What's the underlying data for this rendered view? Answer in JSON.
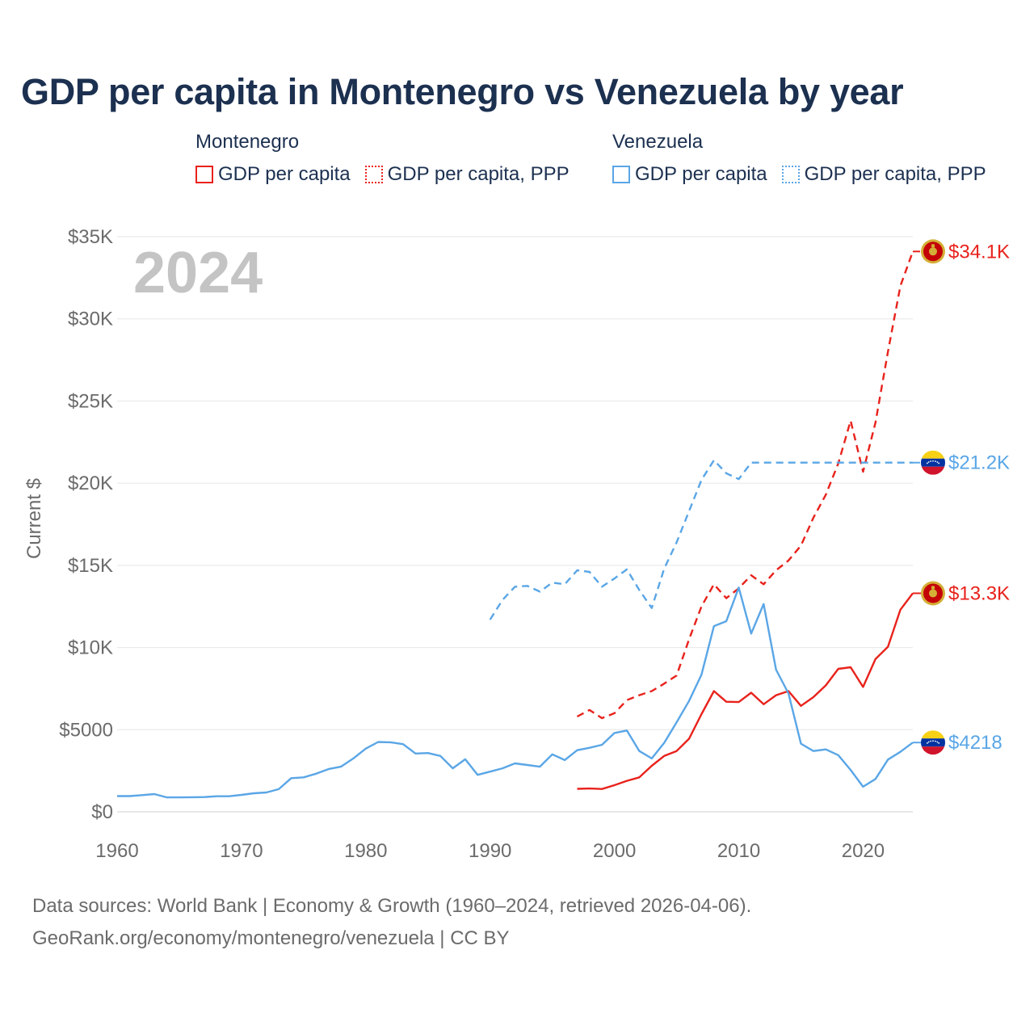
{
  "title": "GDP per capita in Montenegro vs Venezuela by year",
  "legend": [
    {
      "country": "Montenegro",
      "color": "#e8221c",
      "items": [
        {
          "label": "GDP per capita",
          "style": "solid"
        },
        {
          "label": "GDP per capita, PPP",
          "style": "dotted"
        }
      ]
    },
    {
      "country": "Venezuela",
      "color": "#5aa6e6",
      "items": [
        {
          "label": "GDP per capita",
          "style": "solid"
        },
        {
          "label": "GDP per capita, PPP",
          "style": "dotted"
        }
      ]
    }
  ],
  "year_label": "2024",
  "source_line1": "Data sources: World Bank | Economy & Growth (1960–2024, retrieved 2026-04-06).",
  "source_line2": "GeoRank.org/economy/montenegro/venezuela | CC BY",
  "chart_data": {
    "type": "line",
    "title": "GDP per capita in Montenegro vs Venezuela by year",
    "xlabel": "",
    "ylabel": "Current $",
    "xlim": [
      1960,
      2024
    ],
    "ylim": [
      0,
      35000
    ],
    "x_ticks": [
      1960,
      1970,
      1980,
      1990,
      2000,
      2010,
      2020
    ],
    "y_ticks": [
      0,
      5000,
      10000,
      15000,
      20000,
      25000,
      30000,
      35000
    ],
    "y_tick_labels": [
      "$0",
      "$5000",
      "$10K",
      "$15K",
      "$20K",
      "$25K",
      "$30K",
      "$35K"
    ],
    "grid": true,
    "series": [
      {
        "name": "Montenegro GDP per capita, PPP",
        "color": "#e8221c",
        "dash": "dashed",
        "end_label": "$34.1K",
        "flag": "montenegro",
        "points": [
          [
            1997,
            5800
          ],
          [
            1998,
            6200
          ],
          [
            1999,
            5700
          ],
          [
            2000,
            6000
          ],
          [
            2001,
            6800
          ],
          [
            2002,
            7100
          ],
          [
            2003,
            7350
          ],
          [
            2004,
            7800
          ],
          [
            2005,
            8300
          ],
          [
            2006,
            10500
          ],
          [
            2007,
            12500
          ],
          [
            2008,
            13850
          ],
          [
            2009,
            13000
          ],
          [
            2010,
            13600
          ],
          [
            2011,
            14400
          ],
          [
            2012,
            13850
          ],
          [
            2013,
            14700
          ],
          [
            2014,
            15300
          ],
          [
            2015,
            16200
          ],
          [
            2016,
            17900
          ],
          [
            2017,
            19300
          ],
          [
            2018,
            21200
          ],
          [
            2019,
            23800
          ],
          [
            2020,
            20700
          ],
          [
            2021,
            23700
          ],
          [
            2022,
            28000
          ],
          [
            2023,
            32000
          ],
          [
            2024,
            34100
          ]
        ]
      },
      {
        "name": "Venezuela GDP per capita, PPP",
        "color": "#5aa6e6",
        "dash": "dashed",
        "end_label": "$21.2K",
        "flag": "venezuela",
        "points": [
          [
            1990,
            11700
          ],
          [
            1991,
            12900
          ],
          [
            1992,
            13700
          ],
          [
            1993,
            13750
          ],
          [
            1994,
            13400
          ],
          [
            1995,
            13950
          ],
          [
            1996,
            13850
          ],
          [
            1997,
            14700
          ],
          [
            1998,
            14600
          ],
          [
            1999,
            13700
          ],
          [
            2000,
            14200
          ],
          [
            2001,
            14750
          ],
          [
            2002,
            13500
          ],
          [
            2003,
            12400
          ],
          [
            2004,
            14800
          ],
          [
            2005,
            16400
          ],
          [
            2006,
            18300
          ],
          [
            2007,
            20200
          ],
          [
            2008,
            21400
          ],
          [
            2009,
            20600
          ],
          [
            2010,
            20250
          ],
          [
            2011,
            21250
          ],
          [
            2012,
            21250
          ],
          [
            2013,
            21250
          ],
          [
            2014,
            21250
          ],
          [
            2015,
            21250
          ],
          [
            2016,
            21250
          ],
          [
            2017,
            21250
          ],
          [
            2018,
            21250
          ],
          [
            2019,
            21250
          ],
          [
            2020,
            21250
          ],
          [
            2021,
            21250
          ],
          [
            2022,
            21250
          ],
          [
            2023,
            21250
          ],
          [
            2024,
            21250
          ]
        ]
      },
      {
        "name": "Montenegro GDP per capita",
        "color": "#e8221c",
        "dash": "solid",
        "end_label": "$13.3K",
        "flag": "montenegro",
        "points": [
          [
            1997,
            1400
          ],
          [
            1998,
            1420
          ],
          [
            1999,
            1390
          ],
          [
            2000,
            1620
          ],
          [
            2001,
            1890
          ],
          [
            2002,
            2100
          ],
          [
            2003,
            2800
          ],
          [
            2004,
            3400
          ],
          [
            2005,
            3700
          ],
          [
            2006,
            4450
          ],
          [
            2007,
            5950
          ],
          [
            2008,
            7350
          ],
          [
            2009,
            6700
          ],
          [
            2010,
            6680
          ],
          [
            2011,
            7250
          ],
          [
            2012,
            6550
          ],
          [
            2013,
            7100
          ],
          [
            2014,
            7350
          ],
          [
            2015,
            6450
          ],
          [
            2016,
            6980
          ],
          [
            2017,
            7700
          ],
          [
            2018,
            8700
          ],
          [
            2019,
            8800
          ],
          [
            2020,
            7600
          ],
          [
            2021,
            9300
          ],
          [
            2022,
            10050
          ],
          [
            2023,
            12300
          ],
          [
            2024,
            13300
          ]
        ]
      },
      {
        "name": "Venezuela GDP per capita",
        "color": "#5aa6e6",
        "dash": "solid",
        "end_label": "$4218",
        "flag": "venezuela",
        "points": [
          [
            1960,
            960
          ],
          [
            1961,
            960
          ],
          [
            1962,
            1020
          ],
          [
            1963,
            1080
          ],
          [
            1964,
            880
          ],
          [
            1965,
            880
          ],
          [
            1966,
            890
          ],
          [
            1967,
            900
          ],
          [
            1968,
            950
          ],
          [
            1969,
            950
          ],
          [
            1970,
            1030
          ],
          [
            1971,
            1130
          ],
          [
            1972,
            1180
          ],
          [
            1973,
            1380
          ],
          [
            1974,
            2050
          ],
          [
            1975,
            2100
          ],
          [
            1976,
            2320
          ],
          [
            1977,
            2600
          ],
          [
            1978,
            2750
          ],
          [
            1979,
            3250
          ],
          [
            1980,
            3850
          ],
          [
            1981,
            4250
          ],
          [
            1982,
            4230
          ],
          [
            1983,
            4120
          ],
          [
            1984,
            3550
          ],
          [
            1985,
            3580
          ],
          [
            1986,
            3400
          ],
          [
            1987,
            2650
          ],
          [
            1988,
            3200
          ],
          [
            1989,
            2250
          ],
          [
            1990,
            2450
          ],
          [
            1991,
            2650
          ],
          [
            1992,
            2950
          ],
          [
            1993,
            2850
          ],
          [
            1994,
            2750
          ],
          [
            1995,
            3500
          ],
          [
            1996,
            3150
          ],
          [
            1997,
            3750
          ],
          [
            1998,
            3900
          ],
          [
            1999,
            4080
          ],
          [
            2000,
            4800
          ],
          [
            2001,
            4950
          ],
          [
            2002,
            3700
          ],
          [
            2003,
            3250
          ],
          [
            2004,
            4200
          ],
          [
            2005,
            5450
          ],
          [
            2006,
            6750
          ],
          [
            2007,
            8350
          ],
          [
            2008,
            11300
          ],
          [
            2009,
            11600
          ],
          [
            2010,
            13650
          ],
          [
            2011,
            10850
          ],
          [
            2012,
            12650
          ],
          [
            2013,
            8650
          ],
          [
            2014,
            7200
          ],
          [
            2015,
            4150
          ],
          [
            2016,
            3700
          ],
          [
            2017,
            3800
          ],
          [
            2018,
            3450
          ],
          [
            2019,
            2550
          ],
          [
            2020,
            1530
          ],
          [
            2021,
            2000
          ],
          [
            2022,
            3180
          ],
          [
            2023,
            3650
          ],
          [
            2024,
            4218
          ]
        ]
      }
    ]
  }
}
